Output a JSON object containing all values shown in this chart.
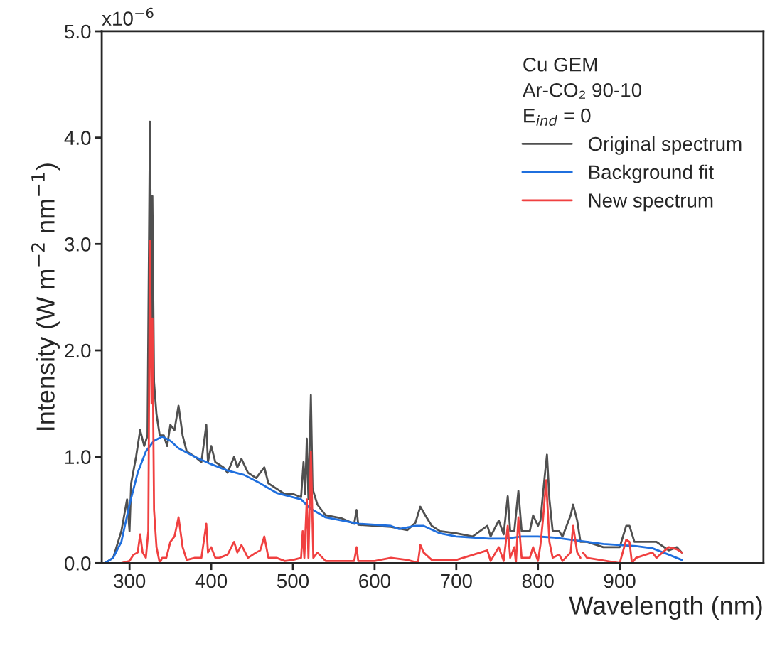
{
  "chart_data": {
    "type": "line",
    "xlabel": "Wavelength (nm)",
    "ylabel": "Intensity (W m$^{−2}$ nm$^{−1}$)",
    "legend_title": "Cu GEM\nAr-CO₂ 90-10\nE$_{ind}$ = 0",
    "annotations": [
      "x10$^{−6}$"
    ],
    "xlim": [
      266,
      1076
    ],
    "xticks": [
      300,
      400,
      500,
      600,
      700,
      800,
      900
    ],
    "ylim": [
      0,
      5
    ],
    "yticks": [
      {
        "value": 0,
        "label": "0.0"
      },
      {
        "value": 1,
        "label": "1.0"
      },
      {
        "value": 2,
        "label": "2.0"
      },
      {
        "value": 3,
        "label": "3.0"
      },
      {
        "value": 4,
        "label": "4.0"
      },
      {
        "value": 5,
        "label": "5.0"
      }
    ],
    "legend": "top right",
    "grid": false,
    "line_style": "solid",
    "series": [
      {
        "name": "Original spectrum",
        "color": "#505050",
        "x": [
          270,
          280,
          290,
          297,
          300,
          302,
          308,
          313,
          318,
          322,
          325,
          327,
          328,
          330,
          333,
          337,
          342,
          346,
          350,
          355,
          360,
          365,
          370,
          380,
          388,
          394,
          396,
          400,
          405,
          415,
          420,
          428,
          432,
          437,
          445,
          455,
          460,
          465,
          470,
          480,
          490,
          500,
          510,
          513,
          515,
          517,
          519,
          522,
          524,
          530,
          540,
          560,
          575,
          578,
          580,
          600,
          620,
          640,
          650,
          656,
          662,
          670,
          680,
          700,
          720,
          738,
          742,
          752,
          758,
          763,
          766,
          771,
          776,
          780,
          790,
          794,
          800,
          803,
          808,
          811,
          814,
          818,
          826,
          830,
          840,
          843,
          848,
          852,
          860,
          880,
          900,
          908,
          912,
          918,
          930,
          940,
          945,
          960,
          970,
          976
        ],
        "values": [
          0.0,
          0.05,
          0.3,
          0.6,
          0.3,
          0.75,
          1.0,
          1.25,
          1.1,
          1.2,
          4.15,
          2.2,
          3.45,
          1.7,
          1.4,
          1.2,
          1.2,
          1.1,
          1.3,
          1.25,
          1.48,
          1.2,
          1.05,
          1.0,
          0.95,
          1.3,
          0.95,
          1.1,
          0.95,
          0.9,
          0.85,
          1.0,
          0.9,
          0.98,
          0.85,
          0.8,
          0.85,
          0.9,
          0.75,
          0.7,
          0.65,
          0.65,
          0.62,
          0.95,
          0.65,
          1.17,
          0.6,
          1.58,
          0.7,
          0.55,
          0.45,
          0.42,
          0.37,
          0.5,
          0.36,
          0.35,
          0.34,
          0.31,
          0.38,
          0.53,
          0.45,
          0.35,
          0.3,
          0.28,
          0.25,
          0.35,
          0.25,
          0.4,
          0.27,
          0.63,
          0.3,
          0.3,
          0.68,
          0.3,
          0.3,
          0.45,
          0.35,
          0.4,
          0.8,
          1.02,
          0.6,
          0.3,
          0.3,
          0.25,
          0.45,
          0.55,
          0.4,
          0.2,
          0.2,
          0.15,
          0.15,
          0.35,
          0.35,
          0.2,
          0.2,
          0.2,
          0.2,
          0.12,
          0.15,
          0.1
        ]
      },
      {
        "name": "Background fit",
        "color": "#1f6fde",
        "x": [
          270,
          280,
          290,
          300,
          310,
          320,
          330,
          340,
          350,
          360,
          380,
          400,
          420,
          440,
          460,
          480,
          500,
          510,
          520,
          540,
          560,
          580,
          600,
          620,
          630,
          650,
          660,
          680,
          700,
          740,
          760,
          780,
          800,
          820,
          840,
          860,
          880,
          900,
          920,
          940,
          960,
          976
        ],
        "values": [
          0.0,
          0.05,
          0.2,
          0.55,
          0.85,
          1.05,
          1.15,
          1.19,
          1.15,
          1.08,
          1.0,
          0.93,
          0.87,
          0.83,
          0.75,
          0.66,
          0.62,
          0.6,
          0.52,
          0.43,
          0.4,
          0.37,
          0.36,
          0.35,
          0.32,
          0.35,
          0.35,
          0.28,
          0.25,
          0.23,
          0.23,
          0.25,
          0.25,
          0.24,
          0.22,
          0.2,
          0.18,
          0.17,
          0.16,
          0.14,
          0.08,
          0.03
        ]
      },
      {
        "name": "New spectrum",
        "color": "#f04040",
        "x": [
          270,
          290,
          300,
          305,
          310,
          313,
          316,
          320,
          323,
          325,
          327,
          328,
          330,
          333,
          337,
          340,
          345,
          350,
          355,
          360,
          365,
          370,
          380,
          388,
          394,
          396,
          400,
          405,
          410,
          420,
          428,
          432,
          437,
          445,
          455,
          460,
          465,
          470,
          480,
          490,
          500,
          510,
          512,
          514,
          517,
          519,
          522,
          525,
          530,
          540,
          560,
          575,
          578,
          580,
          600,
          620,
          640,
          650,
          653,
          656,
          660,
          670,
          700,
          738,
          742,
          752,
          758,
          763,
          766,
          771,
          773,
          776,
          780,
          790,
          794,
          800,
          803,
          806,
          810,
          814,
          818,
          826,
          830,
          840,
          843,
          848,
          852,
          853,
          855,
          860,
          900,
          908,
          912,
          915,
          920,
          940,
          945,
          960,
          970,
          976
        ],
        "values": [
          0.0,
          0.0,
          0.02,
          0.08,
          0.1,
          0.27,
          0.1,
          0.05,
          0.3,
          3.03,
          1.5,
          2.3,
          0.5,
          0.15,
          0.0,
          0.05,
          0.05,
          0.2,
          0.25,
          0.43,
          0.15,
          0.03,
          0.05,
          0.05,
          0.37,
          0.1,
          0.15,
          0.05,
          0.05,
          0.08,
          0.2,
          0.1,
          0.17,
          0.05,
          0.1,
          0.12,
          0.25,
          0.05,
          0.05,
          0.02,
          0.03,
          0.05,
          0.3,
          0.05,
          0.6,
          0.05,
          1.05,
          0.05,
          0.1,
          0.02,
          0.02,
          0.02,
          0.15,
          0.02,
          0.02,
          0.05,
          0.03,
          0.01,
          0.0,
          0.17,
          0.1,
          0.03,
          0.03,
          0.12,
          0.02,
          0.15,
          0.02,
          0.35,
          0.05,
          0.15,
          0.0,
          0.43,
          0.05,
          0.05,
          0.15,
          0.02,
          0.17,
          0.4,
          0.78,
          0.2,
          0.05,
          0.08,
          0.02,
          0.1,
          0.35,
          0.1,
          0.05,
          null,
          0.1,
          0.05,
          0.0,
          0.22,
          0.2,
          0.0,
          0.05,
          0.1,
          0.05,
          0.15,
          0.13,
          0.1
        ]
      }
    ]
  }
}
